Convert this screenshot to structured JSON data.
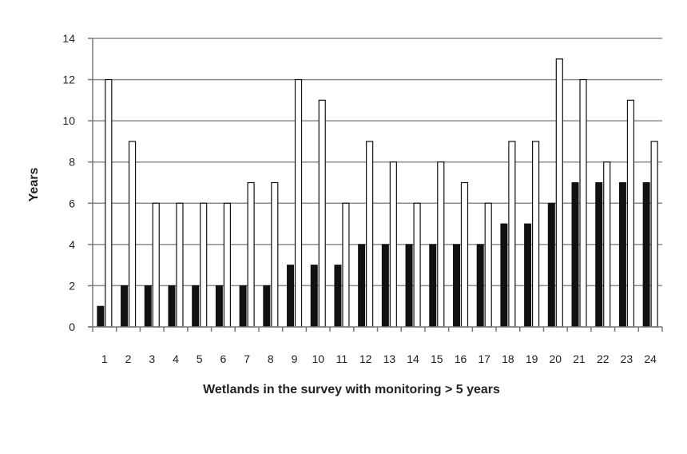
{
  "chart_data": {
    "type": "bar",
    "title": "",
    "xlabel": "Wetlands in the survey with monitoring > 5 years",
    "ylabel": "Years",
    "ylim": [
      0,
      14
    ],
    "yticks": [
      "0",
      "2",
      "4",
      "6",
      "8",
      "10",
      "12",
      "14"
    ],
    "grid": true,
    "legend": "none",
    "categories": [
      "1",
      "2",
      "3",
      "4",
      "5",
      "6",
      "7",
      "8",
      "9",
      "10",
      "11",
      "12",
      "13",
      "14",
      "15",
      "16",
      "17",
      "18",
      "19",
      "20",
      "21",
      "22",
      "23",
      "24"
    ],
    "series": [
      {
        "color": "#111111",
        "values": [
          1,
          2,
          2,
          2,
          2,
          2,
          2,
          2,
          3,
          3,
          3,
          4,
          4,
          4,
          4,
          4,
          4,
          5,
          5,
          6,
          7,
          7,
          7,
          7
        ]
      },
      {
        "color": "#ffffff",
        "values": [
          12,
          9,
          6,
          6,
          6,
          6,
          7,
          7,
          12,
          11,
          6,
          9,
          8,
          6,
          8,
          7,
          6,
          9,
          9,
          13,
          12,
          8,
          11,
          9
        ]
      }
    ]
  }
}
